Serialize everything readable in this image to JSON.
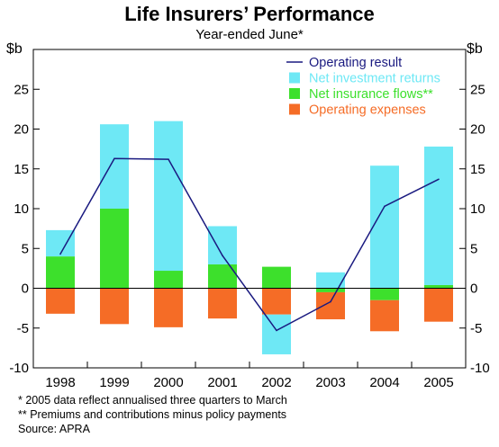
{
  "title": "Life Insurers’ Performance",
  "subtitle": "Year-ended June*",
  "unit_left": "$b",
  "unit_right": "$b",
  "footnotes": [
    "*  2005 data reflect annualised three quarters to March",
    "** Premiums and contributions minus policy payments",
    "Source: APRA"
  ],
  "colors": {
    "operating_result": "#1a1a80",
    "net_investment_returns": "#6ee8f5",
    "net_insurance_flows": "#3de02c",
    "operating_expenses": "#f56c26"
  },
  "chart_data": {
    "type": "bar",
    "categories": [
      "1998",
      "1999",
      "2000",
      "2001",
      "2002",
      "2003",
      "2004",
      "2005"
    ],
    "ylim": [
      -10,
      30
    ],
    "yticks": [
      "-10",
      "-5",
      "0",
      "5",
      "10",
      "15",
      "20",
      "25"
    ],
    "grid": false,
    "legend_position": "top-right",
    "series": [
      {
        "name": "Operating result",
        "kind": "line",
        "values": [
          4.3,
          16.3,
          16.2,
          4.1,
          -5.3,
          -1.7,
          10.3,
          13.7
        ]
      },
      {
        "name": "Net investment returns",
        "kind": "bar",
        "values": [
          3.3,
          10.6,
          18.8,
          4.8,
          -5.0,
          2.0,
          15.4,
          17.4
        ]
      },
      {
        "name": "Net insurance flows**",
        "kind": "bar",
        "values": [
          4.0,
          10.0,
          2.2,
          3.0,
          2.7,
          -0.5,
          -1.5,
          0.4
        ]
      },
      {
        "name": "Operating expenses",
        "kind": "bar",
        "values": [
          -3.2,
          -4.5,
          -4.9,
          -3.8,
          -3.3,
          -3.4,
          -3.9,
          -4.2
        ]
      }
    ]
  }
}
